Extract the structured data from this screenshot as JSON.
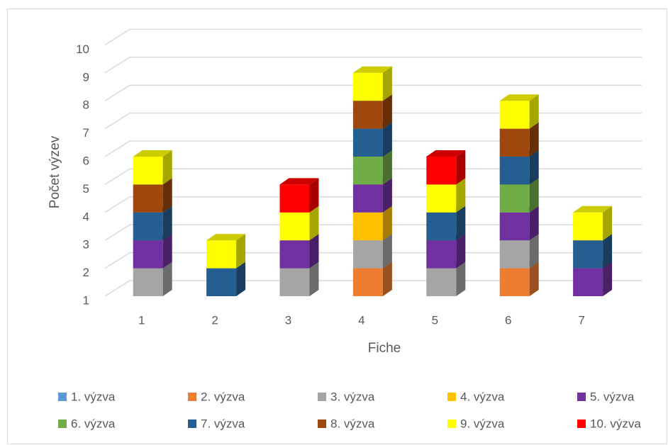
{
  "chart_data": {
    "type": "bar3d_stacked",
    "x_label": "Fiche",
    "y_label": "Počet výzev",
    "categories": [
      "1",
      "2",
      "3",
      "4",
      "5",
      "6",
      "7"
    ],
    "ylim": [
      1,
      10
    ],
    "yticks": [
      1,
      2,
      3,
      4,
      5,
      6,
      7,
      8,
      9,
      10
    ],
    "grid": true,
    "legend": "bottom",
    "series": [
      {
        "name": "1. výzva",
        "color": "#5b9bd5",
        "values": [
          0,
          0,
          0,
          0,
          0,
          0,
          0
        ]
      },
      {
        "name": "2. výzva",
        "color": "#ed7d31",
        "values": [
          0,
          0,
          0,
          1,
          0,
          1,
          0
        ]
      },
      {
        "name": "3. výzva",
        "color": "#a5a5a5",
        "values": [
          1,
          0,
          1,
          1,
          1,
          1,
          0
        ]
      },
      {
        "name": "4. výzva",
        "color": "#ffc000",
        "values": [
          0,
          0,
          0,
          1,
          0,
          0,
          0
        ]
      },
      {
        "name": "5. výzva",
        "color": "#7030a0",
        "values": [
          1,
          0,
          1,
          1,
          1,
          1,
          1
        ]
      },
      {
        "name": "6. výzva",
        "color": "#70ad47",
        "values": [
          0,
          0,
          0,
          1,
          0,
          1,
          0
        ]
      },
      {
        "name": "7. výzva",
        "color": "#255e91",
        "values": [
          1,
          1,
          0,
          1,
          1,
          1,
          1
        ]
      },
      {
        "name": "8. výzva",
        "color": "#9e480e",
        "values": [
          1,
          0,
          0,
          1,
          0,
          1,
          0
        ]
      },
      {
        "name": "9. výzva",
        "color": "#ffff00",
        "values": [
          1,
          1,
          1,
          1,
          1,
          1,
          1
        ]
      },
      {
        "name": "10. výzva",
        "color": "#ff0000",
        "values": [
          0,
          0,
          1,
          0,
          1,
          0,
          0
        ]
      }
    ]
  }
}
